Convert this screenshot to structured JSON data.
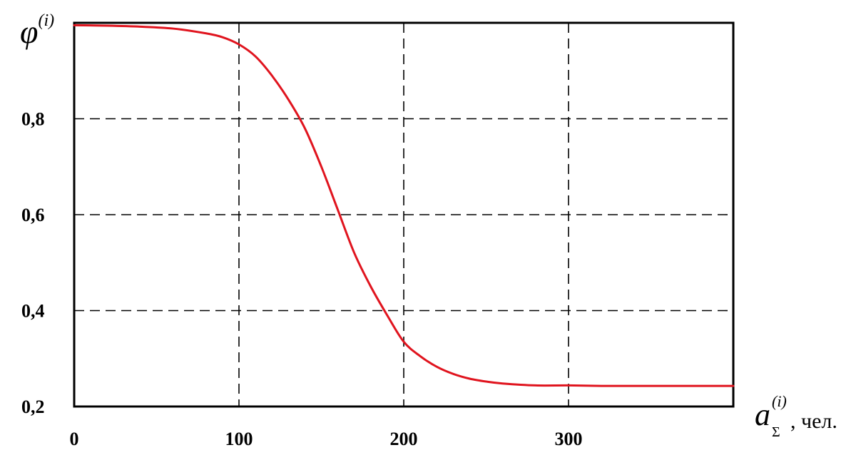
{
  "chart_data": {
    "type": "line",
    "title": "",
    "ylabel": {
      "symbol": "φ",
      "superscript": "(i)"
    },
    "xlabel": {
      "symbol": "a",
      "subscript": "Σ",
      "superscript": "(i)",
      "unit": ", чел."
    },
    "xlim": [
      0,
      400
    ],
    "ylim": [
      0.2,
      1.0
    ],
    "grid": true,
    "x_ticks": [
      {
        "value": 0,
        "label": "0"
      },
      {
        "value": 100,
        "label": "100"
      },
      {
        "value": 200,
        "label": "200"
      },
      {
        "value": 300,
        "label": "300"
      }
    ],
    "y_ticks": [
      {
        "value": 0.2,
        "label": "0,2"
      },
      {
        "value": 0.4,
        "label": "0,4"
      },
      {
        "value": 0.6,
        "label": "0,6"
      },
      {
        "value": 0.8,
        "label": "0,8"
      }
    ],
    "series": [
      {
        "color": "#e0141e",
        "x": [
          0,
          20,
          40,
          60,
          80,
          90,
          100,
          110,
          120,
          130,
          140,
          150,
          160,
          170,
          180,
          190,
          200,
          210,
          220,
          230,
          240,
          250,
          260,
          280,
          300,
          320,
          340,
          360,
          380,
          400
        ],
        "y": [
          0.995,
          0.994,
          0.992,
          0.988,
          0.978,
          0.97,
          0.955,
          0.93,
          0.89,
          0.84,
          0.78,
          0.7,
          0.61,
          0.52,
          0.45,
          0.39,
          0.335,
          0.305,
          0.283,
          0.268,
          0.258,
          0.252,
          0.248,
          0.244,
          0.244,
          0.243,
          0.243,
          0.243,
          0.243,
          0.243
        ]
      }
    ]
  }
}
